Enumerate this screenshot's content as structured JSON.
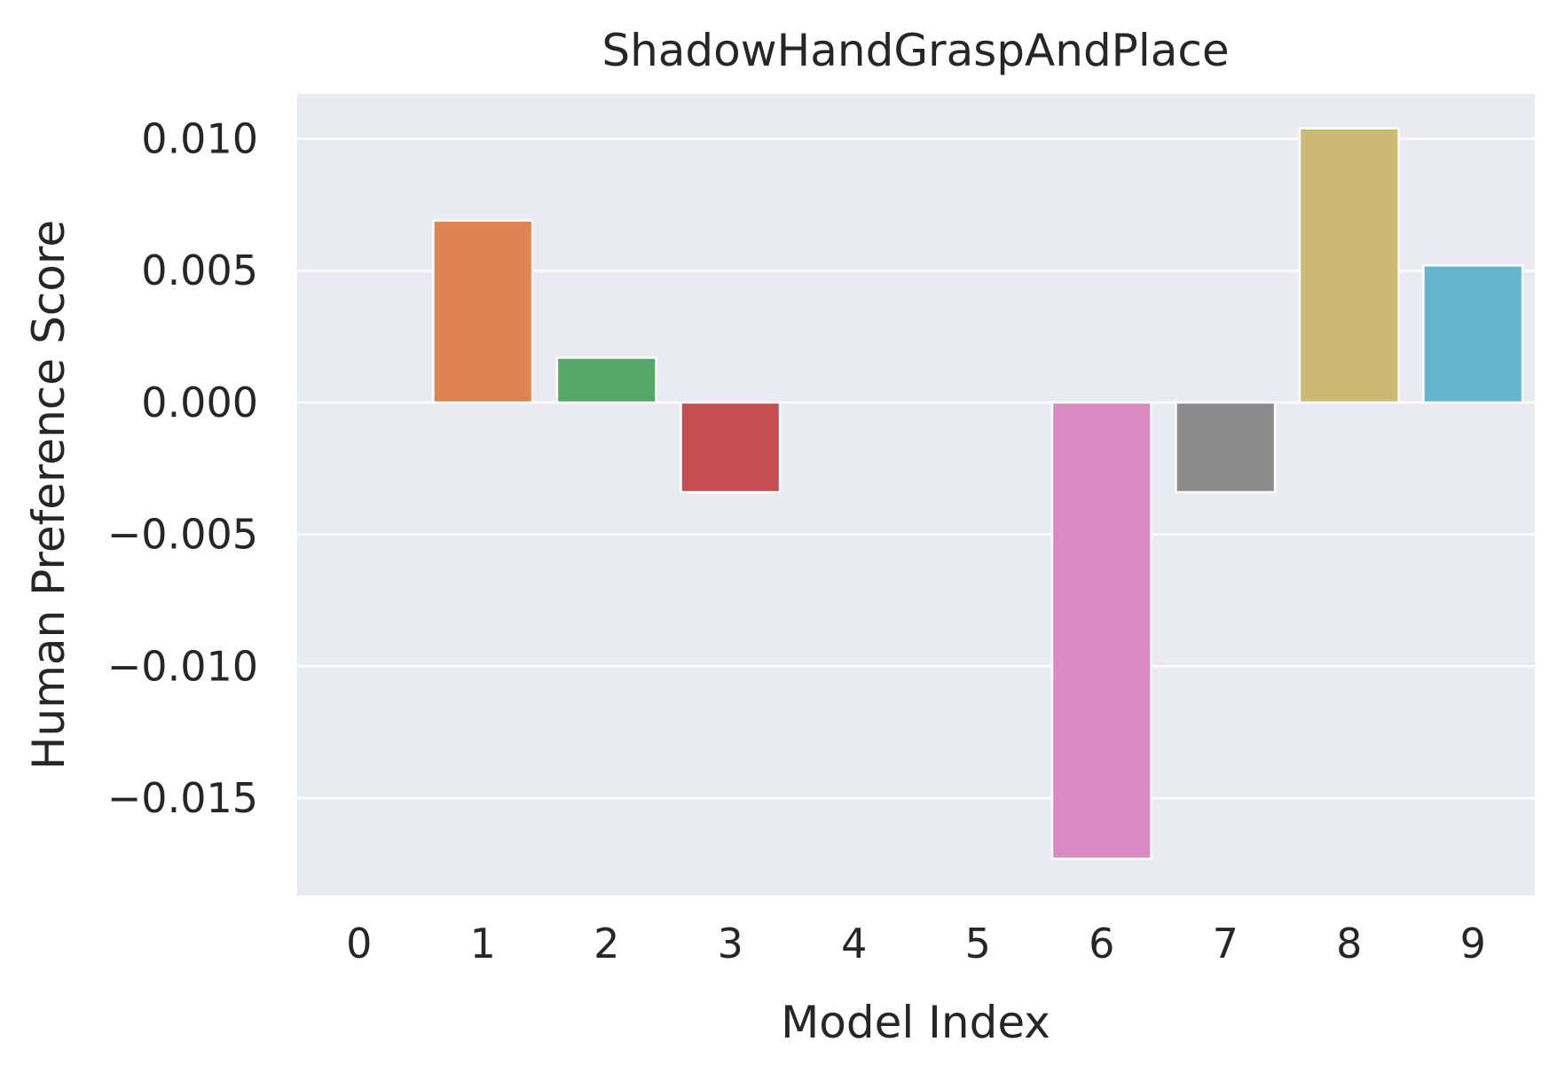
{
  "chart_data": {
    "type": "bar",
    "title": "ShadowHandGraspAndPlace",
    "xlabel": "Model Index",
    "ylabel": "Human Preference Score",
    "categories": [
      "0",
      "1",
      "2",
      "3",
      "4",
      "5",
      "6",
      "7",
      "8",
      "9"
    ],
    "values": [
      0.0,
      0.0069,
      0.0017,
      -0.0034,
      0.0,
      0.0,
      -0.0173,
      -0.0034,
      0.0104,
      0.0052
    ],
    "ylim": [
      -0.0187,
      0.0117
    ],
    "yticks": [
      0.01,
      0.005,
      0.0,
      -0.005,
      -0.01,
      -0.015
    ],
    "ytick_labels": [
      "0.010",
      "0.005",
      "0.000",
      "−0.005",
      "−0.010",
      "−0.015"
    ],
    "grid": true,
    "background": "#eaeaf2",
    "grid_color": "#ffffff",
    "colors": [
      "#4c72b0",
      "#dd8452",
      "#55a868",
      "#c44e52",
      "#8172b3",
      "#937860",
      "#da8bc3",
      "#8c8c8c",
      "#ccb974",
      "#64b5cd"
    ]
  }
}
